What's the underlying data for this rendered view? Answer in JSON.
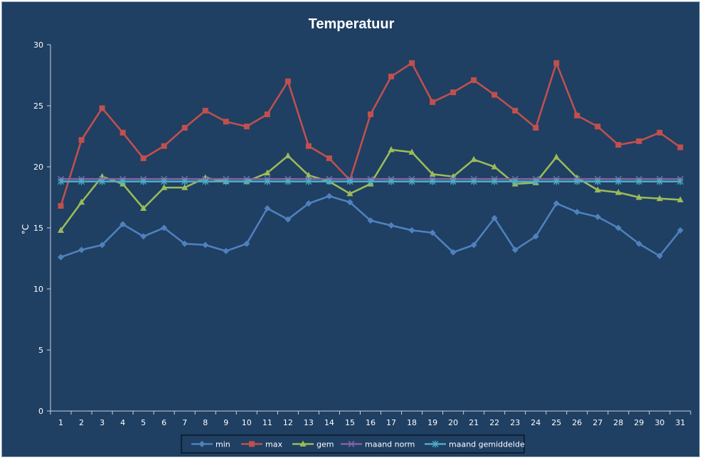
{
  "chart_data": {
    "type": "line",
    "title": "Temperatuur",
    "xlabel": "",
    "ylabel": "°C",
    "ylim": [
      0,
      30
    ],
    "yticks": [
      0,
      5,
      10,
      15,
      20,
      25,
      30
    ],
    "categories": [
      "1",
      "2",
      "3",
      "4",
      "5",
      "6",
      "7",
      "8",
      "9",
      "10",
      "11",
      "12",
      "13",
      "14",
      "15",
      "16",
      "17",
      "18",
      "19",
      "20",
      "21",
      "22",
      "23",
      "24",
      "25",
      "26",
      "27",
      "28",
      "29",
      "30",
      "31"
    ],
    "grid": false,
    "legend_position": "bottom",
    "series": [
      {
        "name": "min",
        "color": "#4f81bd",
        "marker": "diamond",
        "values": [
          12.6,
          13.2,
          13.6,
          15.3,
          14.3,
          15.0,
          13.7,
          13.6,
          13.1,
          13.7,
          16.6,
          15.7,
          17.0,
          17.6,
          17.1,
          15.6,
          15.2,
          14.8,
          14.6,
          13.0,
          13.6,
          15.8,
          13.2,
          14.3,
          17.0,
          16.3,
          15.9,
          15.0,
          13.7,
          12.7,
          14.8
        ]
      },
      {
        "name": "max",
        "color": "#c0504d",
        "marker": "square",
        "values": [
          16.8,
          22.2,
          24.8,
          22.8,
          20.7,
          21.7,
          23.2,
          24.6,
          23.7,
          23.3,
          24.3,
          27.0,
          21.7,
          20.7,
          18.9,
          24.3,
          27.4,
          28.5,
          25.3,
          26.1,
          27.1,
          25.9,
          24.6,
          23.2,
          28.5,
          24.2,
          23.3,
          21.8,
          22.1,
          22.8,
          21.6
        ]
      },
      {
        "name": "gem",
        "color": "#9bbb59",
        "marker": "triangle",
        "values": [
          14.8,
          17.1,
          19.2,
          18.6,
          16.6,
          18.3,
          18.3,
          19.1,
          18.8,
          18.8,
          19.5,
          20.9,
          19.3,
          18.8,
          17.8,
          18.6,
          21.4,
          21.2,
          19.4,
          19.2,
          20.6,
          20.0,
          18.6,
          18.7,
          20.8,
          19.1,
          18.1,
          17.9,
          17.5,
          17.4,
          17.3
        ]
      },
      {
        "name": "maand norm",
        "color": "#8064a2",
        "marker": "x",
        "values": [
          19.0,
          19.0,
          19.0,
          19.0,
          19.0,
          19.0,
          19.0,
          19.0,
          19.0,
          19.0,
          19.0,
          19.0,
          19.0,
          19.0,
          19.0,
          19.0,
          19.0,
          19.0,
          19.0,
          19.0,
          19.0,
          19.0,
          19.0,
          19.0,
          19.0,
          19.0,
          19.0,
          19.0,
          19.0,
          19.0,
          19.0
        ]
      },
      {
        "name": "maand gemiddelde",
        "color": "#4bacc6",
        "marker": "star",
        "values": [
          18.8,
          18.8,
          18.8,
          18.8,
          18.8,
          18.8,
          18.8,
          18.8,
          18.8,
          18.8,
          18.8,
          18.8,
          18.8,
          18.8,
          18.8,
          18.8,
          18.8,
          18.8,
          18.8,
          18.8,
          18.8,
          18.8,
          18.8,
          18.8,
          18.8,
          18.8,
          18.8,
          18.8,
          18.8,
          18.8,
          18.8
        ]
      }
    ]
  }
}
